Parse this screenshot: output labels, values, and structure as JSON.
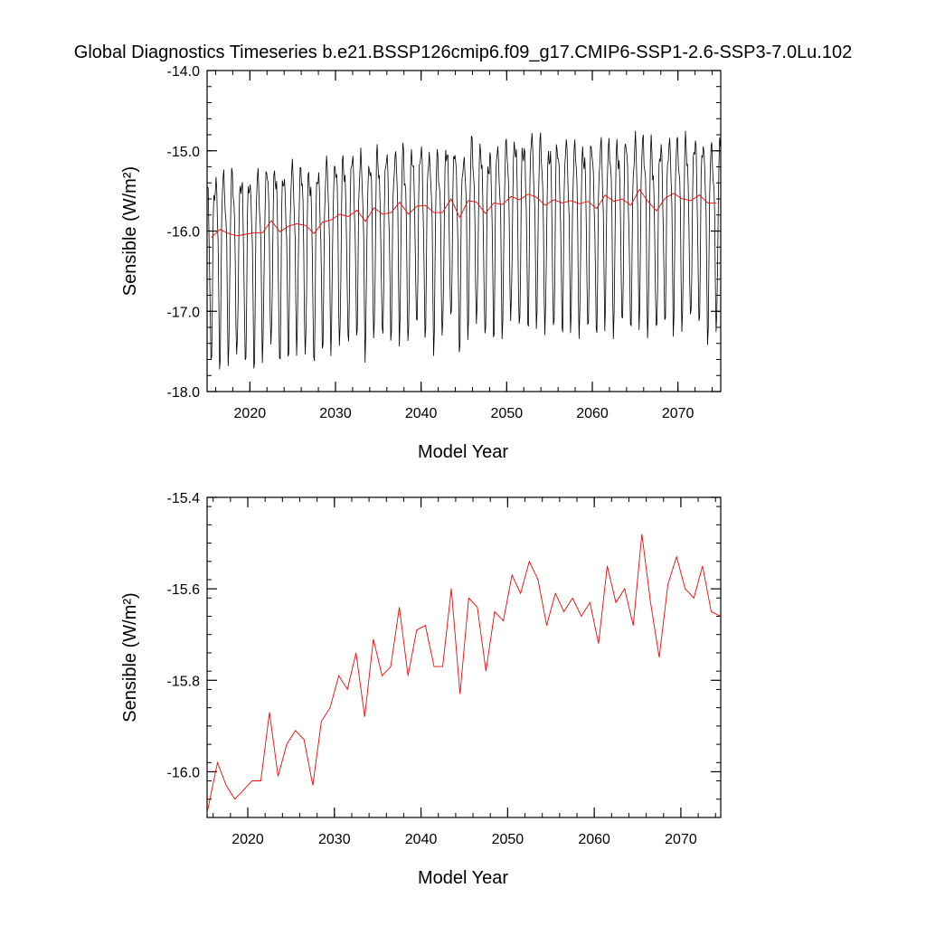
{
  "figure": {
    "title": "Global Diagnostics Timeseries b.e21.BSSP126cmip6.f09_g17.CMIP6-SSP1-2.6-SSP3-7.0Lu.102"
  },
  "colors": {
    "monthly": "#000000",
    "annual": "#ff0000",
    "axes": "#000000"
  },
  "chart_data": [
    {
      "type": "line",
      "xlabel": "Model Year",
      "ylabel": "Sensible (W/m²)",
      "ylim": [
        -18.0,
        -14.0
      ],
      "xlim": [
        2015,
        2075
      ],
      "yticks": [
        -18.0,
        -17.0,
        -16.0,
        -15.0,
        -14.0
      ],
      "ytick_labels": [
        "-18.0",
        "-17.0",
        "-16.0",
        "-15.0",
        "-14.0"
      ],
      "xticks": [
        2020,
        2030,
        2040,
        2050,
        2060,
        2070
      ],
      "xtick_labels": [
        "2020",
        "2030",
        "2040",
        "2050",
        "2060",
        "2070"
      ],
      "grid": false,
      "monthly_cycle": {
        "description_of_values": "monthly anomaly pattern Jan..Dec added to annual mean",
        "pattern": [
          0.55,
          0.45,
          0.15,
          -0.25,
          -1.0,
          -1.6,
          -1.45,
          -0.8,
          0.05,
          0.5,
          0.65,
          0.65
        ]
      },
      "series": [
        {
          "name": "",
          "x": [
            2015.5,
            2016.5,
            2017.5,
            2018.5,
            2019.5,
            2020.5,
            2021.5,
            2022.5,
            2023.5,
            2024.5,
            2025.5,
            2026.5,
            2027.5,
            2028.5,
            2029.5,
            2030.5,
            2031.5,
            2032.5,
            2033.5,
            2034.5,
            2035.5,
            2036.5,
            2037.5,
            2038.5,
            2039.5,
            2040.5,
            2041.5,
            2042.5,
            2043.5,
            2044.5,
            2045.5,
            2046.5,
            2047.5,
            2048.5,
            2049.5,
            2050.5,
            2051.5,
            2052.5,
            2053.5,
            2054.5,
            2055.5,
            2056.5,
            2057.5,
            2058.5,
            2059.5,
            2060.5,
            2061.5,
            2062.5,
            2063.5,
            2064.5,
            2065.5,
            2066.5,
            2067.5,
            2068.5,
            2069.5,
            2070.5,
            2071.5,
            2072.5,
            2073.5,
            2074.5
          ],
          "values": [
            -16.08,
            -15.98,
            -16.03,
            -16.06,
            -16.04,
            -16.02,
            -16.02,
            -15.87,
            -16.01,
            -15.94,
            -15.91,
            -15.93,
            -16.03,
            -15.89,
            -15.86,
            -15.79,
            -15.82,
            -15.74,
            -15.88,
            -15.71,
            -15.79,
            -15.77,
            -15.64,
            -15.79,
            -15.69,
            -15.68,
            -15.77,
            -15.77,
            -15.6,
            -15.83,
            -15.62,
            -15.64,
            -15.78,
            -15.65,
            -15.67,
            -15.57,
            -15.61,
            -15.54,
            -15.58,
            -15.68,
            -15.61,
            -15.65,
            -15.62,
            -15.66,
            -15.63,
            -15.72,
            -15.55,
            -15.63,
            -15.6,
            -15.68,
            -15.48,
            -15.63,
            -15.75,
            -15.59,
            -15.53,
            -15.6,
            -15.62,
            -15.55,
            -15.65,
            -15.65
          ]
        }
      ]
    },
    {
      "type": "line",
      "xlabel": "Model Year",
      "ylabel": "Sensible (W/m²)",
      "ylim": [
        -16.1,
        -15.4
      ],
      "xlim": [
        2015.3,
        2074.6
      ],
      "yticks": [
        -16.0,
        -15.8,
        -15.6,
        -15.4
      ],
      "ytick_labels": [
        "-16.0",
        "-15.8",
        "-15.6",
        "-15.4"
      ],
      "xticks": [
        2020,
        2030,
        2040,
        2050,
        2060,
        2070
      ],
      "xtick_labels": [
        "2020",
        "2030",
        "2040",
        "2050",
        "2060",
        "2070"
      ],
      "grid": false,
      "series": [
        {
          "name": "",
          "x": [
            2015.3,
            2016.5,
            2017.5,
            2018.5,
            2019.5,
            2020.5,
            2021.5,
            2022.5,
            2023.5,
            2024.5,
            2025.5,
            2026.5,
            2027.5,
            2028.5,
            2029.5,
            2030.5,
            2031.5,
            2032.5,
            2033.5,
            2034.5,
            2035.5,
            2036.5,
            2037.5,
            2038.5,
            2039.5,
            2040.5,
            2041.5,
            2042.5,
            2043.5,
            2044.5,
            2045.5,
            2046.5,
            2047.5,
            2048.5,
            2049.5,
            2050.5,
            2051.5,
            2052.5,
            2053.5,
            2054.5,
            2055.5,
            2056.5,
            2057.5,
            2058.5,
            2059.5,
            2060.5,
            2061.5,
            2062.5,
            2063.5,
            2064.5,
            2065.5,
            2066.5,
            2067.5,
            2068.5,
            2069.5,
            2070.5,
            2071.5,
            2072.5,
            2073.5,
            2074.6
          ],
          "values": [
            -16.09,
            -15.98,
            -16.03,
            -16.06,
            -16.04,
            -16.02,
            -16.02,
            -15.87,
            -16.01,
            -15.94,
            -15.91,
            -15.93,
            -16.03,
            -15.89,
            -15.86,
            -15.79,
            -15.82,
            -15.74,
            -15.88,
            -15.71,
            -15.79,
            -15.77,
            -15.64,
            -15.79,
            -15.69,
            -15.68,
            -15.77,
            -15.77,
            -15.6,
            -15.83,
            -15.62,
            -15.64,
            -15.78,
            -15.65,
            -15.67,
            -15.57,
            -15.61,
            -15.54,
            -15.58,
            -15.68,
            -15.61,
            -15.65,
            -15.62,
            -15.66,
            -15.63,
            -15.72,
            -15.55,
            -15.63,
            -15.6,
            -15.68,
            -15.48,
            -15.63,
            -15.75,
            -15.59,
            -15.53,
            -15.6,
            -15.62,
            -15.55,
            -15.65,
            -15.66
          ]
        }
      ]
    }
  ]
}
